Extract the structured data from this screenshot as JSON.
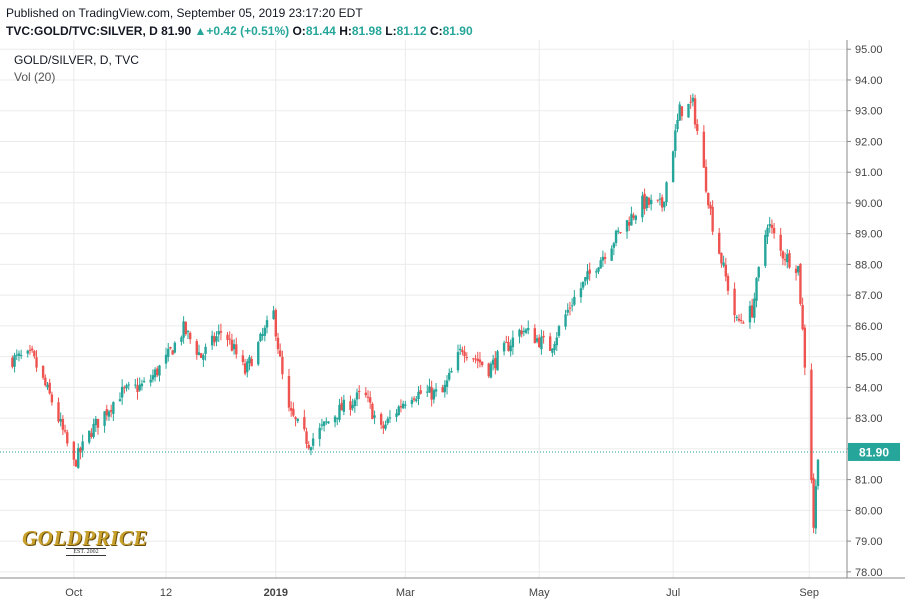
{
  "header": {
    "published": "Published on TradingView.com, September 05, 2019 23:17:20 EDT",
    "symbol": "TVC:GOLD/TVC:SILVER, D",
    "last": "81.90",
    "change": "+0.42 (+0.51%)",
    "o_label": "O:",
    "o_value": "81.44",
    "h_label": "H:",
    "h_value": "81.98",
    "l_label": "L:",
    "l_value": "81.12",
    "c_label": "C:",
    "c_value": "81.90"
  },
  "legend": {
    "title": "GOLD/SILVER, D, TVC",
    "indicator": "Vol (20)"
  },
  "logo": {
    "name": "GOLDPRICE",
    "est": "EST. 2002"
  },
  "colors": {
    "up": "#26a69a",
    "down": "#ef5350",
    "grid": "#ebebeb",
    "last_price_badge": "#26a69a"
  },
  "chart_data": {
    "type": "candlestick",
    "title": "GOLD/SILVER, D, TVC",
    "ylim": [
      77.8,
      95.3
    ],
    "y_ticks": [
      "95.00",
      "94.00",
      "93.00",
      "92.00",
      "91.00",
      "90.00",
      "89.00",
      "88.00",
      "87.00",
      "86.00",
      "85.00",
      "84.00",
      "83.00",
      "82.00",
      "81.00",
      "80.00",
      "79.00",
      "78.00"
    ],
    "x_ticks": [
      "Oct",
      "12",
      "2019",
      "Mar",
      "May",
      "Jul",
      "Sep"
    ],
    "last_price": 81.9,
    "last_price_label": "81.90",
    "grid": true,
    "close_path": [
      [
        "2018-09-01",
        84.9
      ],
      [
        "2018-09-12",
        85.0
      ],
      [
        "2018-09-22",
        83.4
      ],
      [
        "2018-10-01",
        81.5
      ],
      [
        "2018-10-09",
        82.6
      ],
      [
        "2018-10-22",
        83.8
      ],
      [
        "2018-11-03",
        84.1
      ],
      [
        "2018-11-12",
        84.9
      ],
      [
        "2018-11-20",
        85.9
      ],
      [
        "2018-11-28",
        85.0
      ],
      [
        "2018-12-08",
        85.9
      ],
      [
        "2018-12-18",
        84.5
      ],
      [
        "2018-12-31",
        86.4
      ],
      [
        "2019-01-06",
        83.3
      ],
      [
        "2019-01-16",
        82.2
      ],
      [
        "2019-01-29",
        83.2
      ],
      [
        "2019-02-10",
        83.8
      ],
      [
        "2019-02-18",
        82.6
      ],
      [
        "2019-03-03",
        83.8
      ],
      [
        "2019-03-18",
        83.8
      ],
      [
        "2019-03-27",
        85.3
      ],
      [
        "2019-04-08",
        84.6
      ],
      [
        "2019-04-23",
        85.9
      ],
      [
        "2019-05-06",
        85.3
      ],
      [
        "2019-05-16",
        86.8
      ],
      [
        "2019-05-27",
        88.0
      ],
      [
        "2019-06-08",
        89.2
      ],
      [
        "2019-06-17",
        90.0
      ],
      [
        "2019-06-26",
        89.9
      ],
      [
        "2019-07-04",
        93.0
      ],
      [
        "2019-07-10",
        93.2
      ],
      [
        "2019-07-19",
        89.3
      ],
      [
        "2019-07-30",
        86.1
      ],
      [
        "2019-08-06",
        86.5
      ],
      [
        "2019-08-13",
        89.4
      ],
      [
        "2019-08-19",
        88.4
      ],
      [
        "2019-08-27",
        87.9
      ],
      [
        "2019-09-01",
        82.7
      ],
      [
        "2019-09-03",
        79.5
      ],
      [
        "2019-09-05",
        81.9
      ]
    ]
  }
}
